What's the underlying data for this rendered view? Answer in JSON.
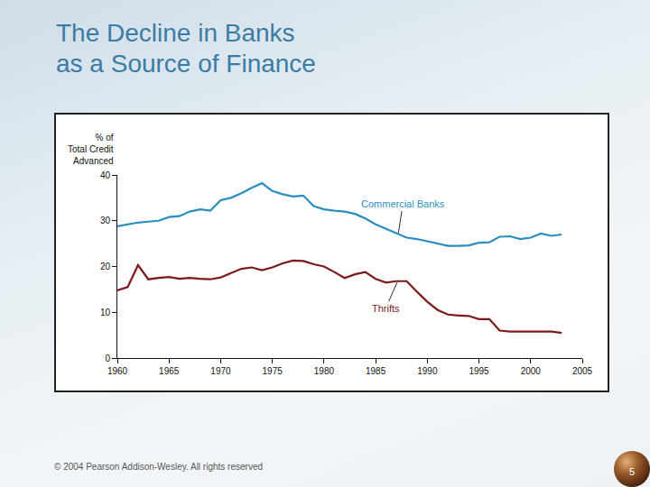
{
  "chart_data": {
    "type": "line",
    "title": "The Decline in Banks\nas a Source of Finance",
    "y_label": "% of\nTotal Credit\nAdvanced",
    "x": [
      1960,
      1961,
      1962,
      1963,
      1964,
      1965,
      1966,
      1967,
      1968,
      1969,
      1970,
      1971,
      1972,
      1973,
      1974,
      1975,
      1976,
      1977,
      1978,
      1979,
      1980,
      1981,
      1982,
      1983,
      1984,
      1985,
      1986,
      1987,
      1988,
      1989,
      1990,
      1991,
      1992,
      1993,
      1994,
      1995,
      1996,
      1997,
      1998,
      1999,
      2000,
      2001,
      2002,
      2003
    ],
    "series": [
      {
        "name": "Commercial Banks",
        "color": "#2a8fc0",
        "values": [
          28.8,
          29.2,
          29.6,
          29.8,
          30.0,
          30.8,
          31.0,
          32.0,
          32.5,
          32.2,
          34.5,
          35.0,
          36.0,
          37.2,
          38.2,
          36.5,
          35.8,
          35.3,
          35.5,
          33.2,
          32.5,
          32.2,
          32.0,
          31.5,
          30.5,
          29.2,
          28.2,
          27.2,
          26.3,
          26.0,
          25.5,
          25.0,
          24.5,
          24.5,
          24.6,
          25.2,
          25.3,
          26.5,
          26.6,
          26.0,
          26.3,
          27.2,
          26.7,
          27.0
        ]
      },
      {
        "name": "Thrifts",
        "color": "#7a1a1a",
        "values": [
          14.8,
          15.5,
          20.3,
          17.2,
          17.5,
          17.7,
          17.3,
          17.5,
          17.3,
          17.2,
          17.6,
          18.5,
          19.5,
          19.8,
          19.2,
          19.8,
          20.7,
          21.3,
          21.2,
          20.5,
          20.0,
          18.8,
          17.5,
          18.3,
          18.8,
          17.3,
          16.5,
          16.8,
          16.8,
          14.5,
          12.3,
          10.5,
          9.5,
          9.3,
          9.2,
          8.5,
          8.5,
          6.0,
          5.8,
          5.8,
          5.8,
          5.8,
          5.8,
          5.5
        ]
      }
    ],
    "annotations": [
      {
        "text": "Commercial Banks",
        "x": 1987.2,
        "y": 27.3,
        "color": "#2a8fc0"
      },
      {
        "text": "Thrifts",
        "x": 1987.1,
        "y": 16.6,
        "color": "#7a1a1a"
      }
    ],
    "xlim": [
      1960,
      2005
    ],
    "xticks": [
      1960,
      1965,
      1970,
      1975,
      1980,
      1985,
      1990,
      1995,
      2000,
      2005
    ],
    "ylim": [
      0,
      40
    ],
    "yticks": [
      0,
      10,
      20,
      30,
      40
    ],
    "grid": false
  },
  "slide": {
    "footer": "© 2004 Pearson Addison-Wesley. All rights reserved",
    "page": 5
  }
}
